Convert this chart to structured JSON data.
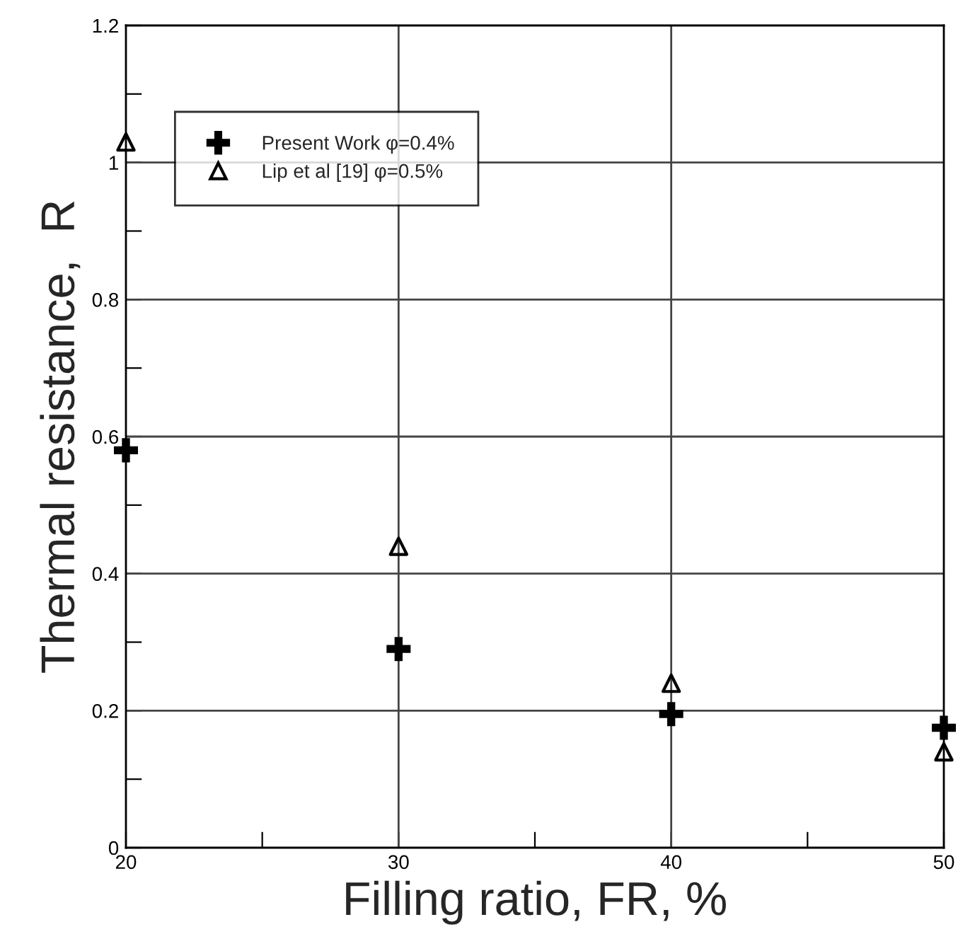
{
  "chart_data": {
    "type": "scatter",
    "xlabel": "Filling ratio, FR, %",
    "ylabel": "Thermal resistance,  R",
    "series": [
      {
        "name": "Present Work φ=0.4%",
        "color": "#000000",
        "marker": "cross",
        "x": [
          20,
          30,
          40,
          50
        ],
        "values": [
          0.58,
          0.29,
          0.195,
          0.175
        ]
      },
      {
        "name": "Lip et al [19] φ=0.5%",
        "color": "#000000",
        "marker": "triangle",
        "x": [
          20,
          30,
          40,
          50
        ],
        "values": [
          1.03,
          0.44,
          0.24,
          0.14
        ]
      }
    ],
    "xlim": [
      20,
      50
    ],
    "ylim": [
      0,
      1.2
    ],
    "xticks": [
      20,
      {
        "value": 25,
        "label": null
      },
      30,
      {
        "value": 35,
        "label": null
      },
      40,
      {
        "value": 45,
        "label": null
      },
      50
    ],
    "yticks": [
      0,
      {
        "value": 0.1,
        "label": null
      },
      0.2,
      {
        "value": 0.3,
        "label": null
      },
      0.4,
      {
        "value": 0.5,
        "label": null
      },
      0.6,
      {
        "value": 0.7,
        "label": null
      },
      0.8,
      {
        "value": 0.9,
        "label": null
      },
      1,
      {
        "value": 1.1,
        "label": null
      },
      1.2
    ],
    "grid": true,
    "legend": "top left"
  }
}
